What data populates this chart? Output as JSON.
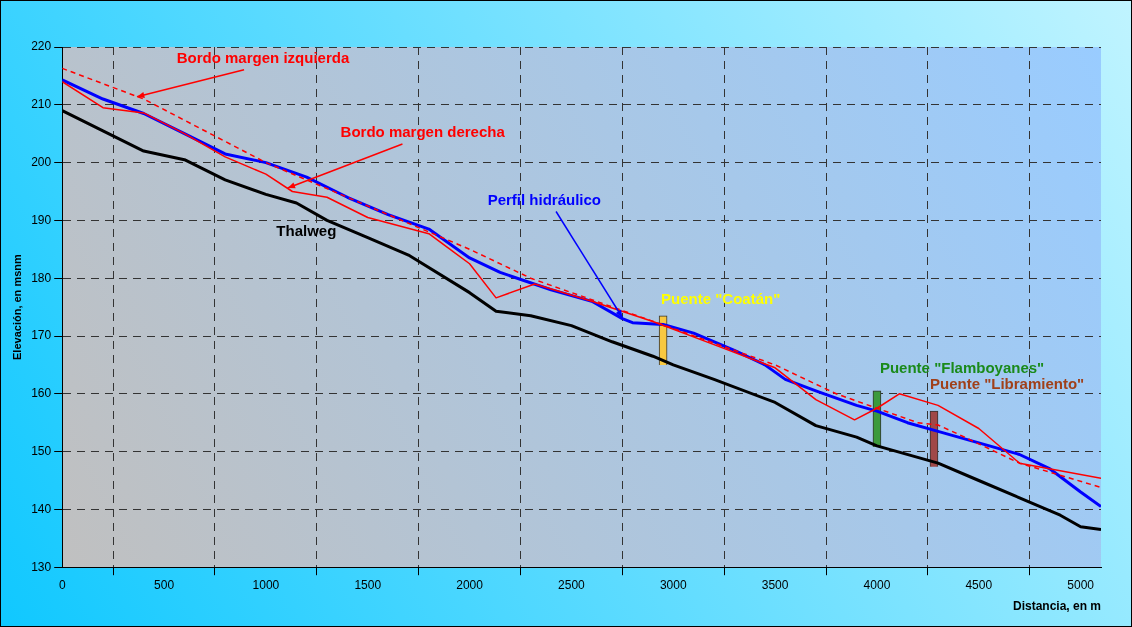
{
  "chart_data": {
    "type": "line",
    "xlabel": "Distancia, en m",
    "ylabel": "Elevación, en msnm",
    "xlim": [
      0,
      5100
    ],
    "xticks": [
      0,
      500,
      1000,
      1500,
      2000,
      2500,
      3000,
      3500,
      4000,
      4500,
      5000
    ],
    "ylim": [
      130,
      220
    ],
    "yticks": [
      130,
      140,
      150,
      160,
      170,
      180,
      190,
      200,
      210,
      220
    ],
    "grid": true,
    "legend": false,
    "marker": "none",
    "series": [
      {
        "color": "#000000",
        "x": [
          0,
          200,
          400,
          600,
          800,
          1000,
          1150,
          1300,
          1500,
          1700,
          2000,
          2130,
          2300,
          2500,
          2700,
          2900,
          3000,
          3200,
          3500,
          3700,
          3900,
          4000,
          4300,
          4500,
          4700,
          4900,
          5000,
          5100
        ],
        "values": [
          209,
          205.5,
          202,
          200.5,
          197,
          194.5,
          193,
          190,
          187,
          184,
          177.5,
          174.3,
          173.5,
          171.8,
          169,
          166.5,
          165,
          162.5,
          158.5,
          154.5,
          152.5,
          151,
          148,
          145,
          142,
          139,
          137,
          136.5
        ]
      },
      {
        "color": "#0000ff",
        "x": [
          0,
          200,
          400,
          600,
          800,
          1000,
          1200,
          1400,
          1600,
          1800,
          2000,
          2150,
          2400,
          2600,
          2750,
          2800,
          2950,
          3100,
          3300,
          3450,
          3550,
          3700,
          3900,
          4000,
          4150,
          4300,
          4500,
          4700,
          4850,
          5000,
          5100
        ],
        "values": [
          214.3,
          211,
          208.5,
          205,
          201.5,
          200,
          197.5,
          194,
          191,
          188.5,
          183.5,
          181,
          178,
          176,
          173,
          172.3,
          172,
          170.5,
          167.5,
          165,
          162.5,
          160.5,
          158,
          157,
          155,
          153.5,
          151.5,
          149.5,
          147,
          143,
          140.5
        ]
      },
      {
        "color": "#ff0000",
        "line_style": "solid",
        "x": [
          0,
          200,
          400,
          600,
          800,
          1000,
          1130,
          1300,
          1500,
          1800,
          2000,
          2130,
          2320,
          2600,
          2900,
          3200,
          3500,
          3700,
          3890,
          4000,
          4110,
          4300,
          4500,
          4700,
          5100
        ],
        "values": [
          214,
          209.5,
          208.6,
          205,
          201,
          198,
          195,
          194,
          190.5,
          187.7,
          182.5,
          176.6,
          179,
          176,
          172.5,
          168.5,
          164.5,
          159,
          155.5,
          157.5,
          160,
          158,
          154,
          148,
          145.4
        ]
      },
      {
        "color": "#ff0000",
        "line_style": "dashed",
        "x": [
          0,
          400,
          1000,
          2000,
          2300,
          3000,
          3500,
          3800,
          4000,
          4200,
          4300,
          4400,
          4700,
          5100
        ],
        "values": [
          216.3,
          211,
          200,
          185,
          180,
          171.3,
          165,
          160,
          157.5,
          155,
          154.6,
          153,
          148,
          143.8
        ]
      },
      {
        "type": "bar",
        "color": "#f8c840",
        "x": [
          2950
        ],
        "base": [
          165
        ],
        "values": [
          8.5
        ]
      },
      {
        "type": "bar",
        "color": "#3c9a3c",
        "x": [
          4000
        ],
        "base": [
          150.8
        ],
        "values": [
          9.7
        ]
      },
      {
        "type": "bar",
        "color": "#a04848",
        "x": [
          4280
        ],
        "base": [
          147.4
        ],
        "values": [
          9.6
        ]
      }
    ],
    "annotations": [
      "Thalweg",
      {
        "text": "Perfil hidráulico",
        "x": 2750,
        "y": 173.2
      },
      {
        "text": "Bordo margen derecha",
        "x": 1107,
        "y": 195.6
      },
      {
        "text": "Bordo margen izquierda",
        "x": 367,
        "y": 211.4
      },
      {
        "text": "Puente \"Coatán\"",
        "x": 2950,
        "y": 173.5
      },
      {
        "text": "Puente \"Flamboyanes\"",
        "x": 4000,
        "y": 160.5
      },
      {
        "text": "Puente \"Libramiento\"",
        "x": 4280,
        "y": 157
      }
    ]
  }
}
